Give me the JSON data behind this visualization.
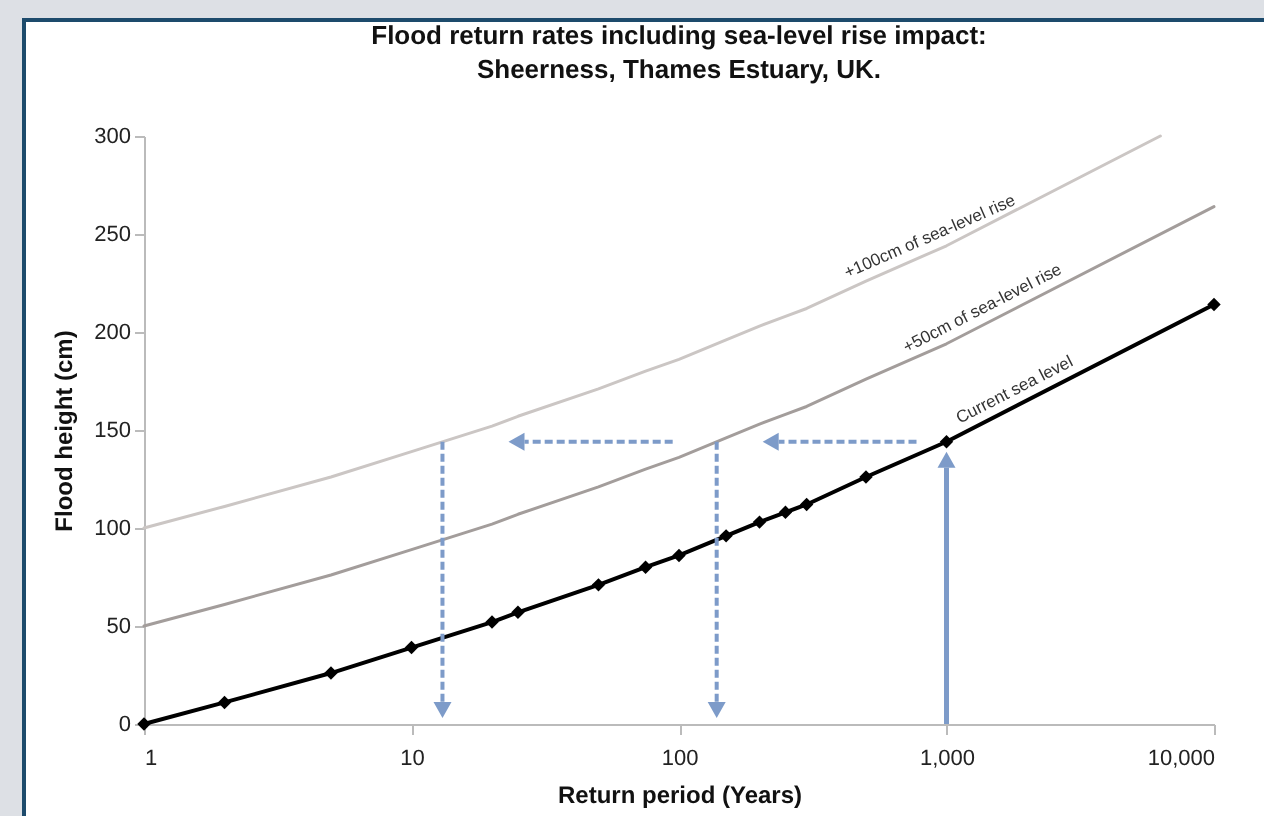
{
  "chart_data": {
    "type": "line",
    "title": "Flood return rates including sea-level rise impact:\nSheerness, Thames Estuary, UK.",
    "xlabel": "Return period (Years)",
    "ylabel": "Flood height (cm)",
    "log": "x",
    "xlim": [
      1,
      10000
    ],
    "xticks": [
      1,
      10,
      100,
      {
        "value": 1000,
        "label": "1,000"
      },
      {
        "value": 10000,
        "label": "10,000"
      }
    ],
    "ylim": [
      0,
      300
    ],
    "yticks": [
      0,
      50,
      100,
      150,
      200,
      250,
      300
    ],
    "line_style": "solid",
    "series": [
      {
        "name": "Current sea level",
        "color": "#000000",
        "marker": "diamond",
        "x": [
          1,
          2,
          5,
          10,
          20,
          25,
          50,
          75,
          100,
          150,
          200,
          250,
          300,
          500,
          1000,
          10000
        ],
        "values": [
          0,
          11,
          26,
          39,
          52,
          57,
          71,
          80,
          86,
          96,
          103,
          108,
          112,
          126,
          144,
          214
        ]
      },
      {
        "name": "+50cm of sea-level rise",
        "color": "#a39d9b",
        "marker": "none",
        "x": [
          1,
          2,
          5,
          10,
          20,
          25,
          50,
          75,
          100,
          150,
          200,
          250,
          300,
          500,
          1000,
          10000
        ],
        "values": [
          50,
          61,
          76,
          89,
          102,
          107,
          121,
          130,
          136,
          146,
          153,
          158,
          162,
          176,
          194,
          264
        ]
      },
      {
        "name": "+100cm of sea-level rise",
        "color": "#cbc6c4",
        "marker": "none",
        "x": [
          1,
          2,
          5,
          10,
          20,
          25,
          50,
          75,
          100,
          150,
          200,
          250,
          300,
          500,
          1000,
          6300
        ],
        "values": [
          100,
          111,
          126,
          139,
          152,
          157,
          171,
          180,
          186,
          196,
          203,
          208,
          212,
          226,
          244,
          300
        ]
      }
    ]
  }
}
